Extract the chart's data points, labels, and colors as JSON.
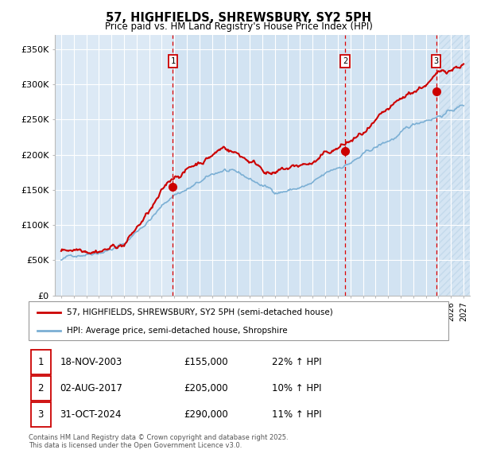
{
  "title_line1": "57, HIGHFIELDS, SHREWSBURY, SY2 5PH",
  "title_line2": "Price paid vs. HM Land Registry's House Price Index (HPI)",
  "ylabel_ticks": [
    "£0",
    "£50K",
    "£100K",
    "£150K",
    "£200K",
    "£250K",
    "£300K",
    "£350K"
  ],
  "ytick_values": [
    0,
    50000,
    100000,
    150000,
    200000,
    250000,
    300000,
    350000
  ],
  "ylim": [
    0,
    370000
  ],
  "xlim_start": 1994.5,
  "xlim_end": 2027.5,
  "red_line_color": "#cc0000",
  "blue_line_color": "#7bafd4",
  "background_color": "#dce9f5",
  "grid_color": "#ffffff",
  "sale1_x": 2003.88,
  "sale1_y": 155000,
  "sale2_x": 2017.58,
  "sale2_y": 205000,
  "sale3_x": 2024.83,
  "sale3_y": 290000,
  "legend_red_label": "57, HIGHFIELDS, SHREWSBURY, SY2 5PH (semi-detached house)",
  "legend_blue_label": "HPI: Average price, semi-detached house, Shropshire",
  "table_rows": [
    [
      "1",
      "18-NOV-2003",
      "£155,000",
      "22% ↑ HPI"
    ],
    [
      "2",
      "02-AUG-2017",
      "£205,000",
      "10% ↑ HPI"
    ],
    [
      "3",
      "31-OCT-2024",
      "£290,000",
      "11% ↑ HPI"
    ]
  ],
  "footnote": "Contains HM Land Registry data © Crown copyright and database right 2025.\nThis data is licensed under the Open Government Licence v3.0."
}
